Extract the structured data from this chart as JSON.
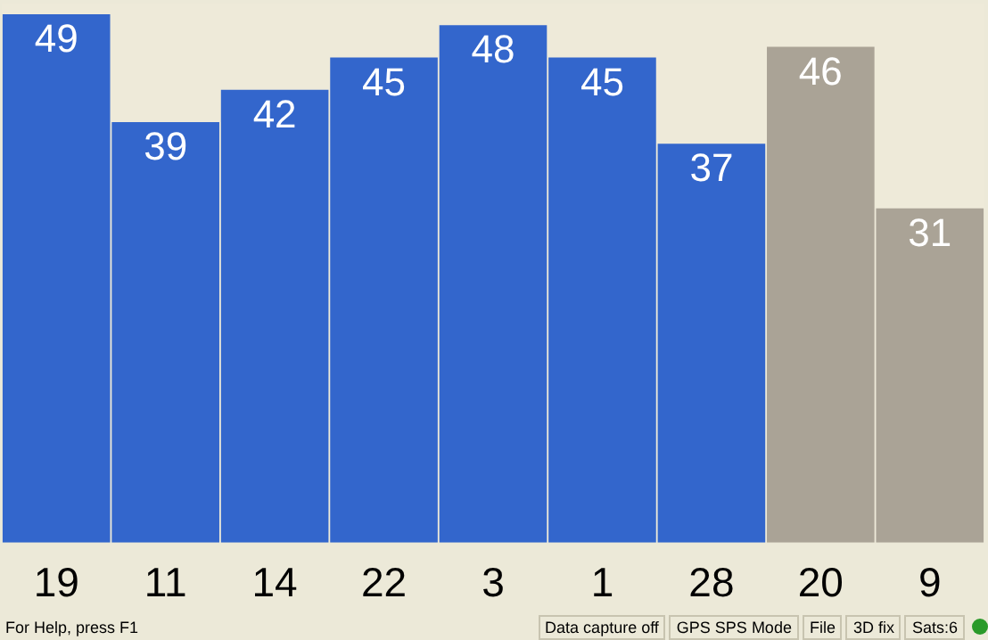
{
  "chart_data": {
    "type": "bar",
    "categories": [
      "19",
      "11",
      "14",
      "22",
      "3",
      "1",
      "28",
      "20",
      "9"
    ],
    "values": [
      49,
      39,
      42,
      45,
      48,
      45,
      37,
      46,
      31
    ],
    "colors": [
      "#3366cc",
      "#3366cc",
      "#3366cc",
      "#3366cc",
      "#3366cc",
      "#3366cc",
      "#3366cc",
      "#aaa396",
      "#aaa396"
    ],
    "data_labels": true,
    "tick_labels": "x",
    "legend": false,
    "annotations": [
      "For Help, press F1",
      "Data capture off",
      "GPS SPS Mode",
      "File",
      "3D fix",
      "Sats:6"
    ]
  }
}
